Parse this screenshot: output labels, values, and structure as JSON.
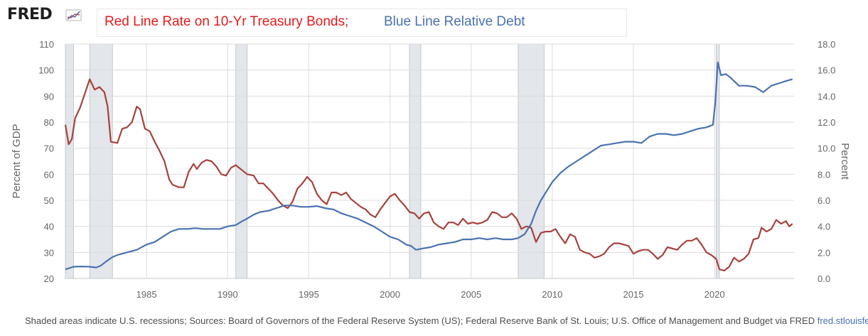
{
  "header": {
    "logo": "FRED",
    "caption_red": "Red Line Rate on 10-Yr Treasury Bonds;",
    "caption_blue": "Blue Line Relative Debt"
  },
  "footer": {
    "prefix": "Shaded areas indicate U.S. recessions",
    "sources": "Sources: Board of Governors of the Federal Reserve System (US); Federal Reserve Bank of St. Louis; U.S. Office of Management and Budget via FRED",
    "url": "fred.stlouisfed.org"
  },
  "colors": {
    "red": "#a7423d",
    "blue": "#4a72b0",
    "recession": "#e3e6ea",
    "grid": "#dcdcdc",
    "axis_text": "#666666"
  },
  "chart_data": {
    "type": "line",
    "xlabel": "",
    "ylabel_left": "Percent of GDP",
    "ylabel_right": "Percent",
    "xlim": [
      1980.0,
      2024.9
    ],
    "ylim_left": [
      20,
      110
    ],
    "ylim_right": [
      0,
      18
    ],
    "x_ticks": [
      1985,
      1990,
      1995,
      2000,
      2005,
      2010,
      2015,
      2020
    ],
    "y_ticks_left": [
      "20",
      "30",
      "40",
      "50",
      "60",
      "70",
      "80",
      "90",
      "100",
      "110"
    ],
    "y_ticks_right": [
      "0.0",
      "2.0",
      "4.0",
      "6.0",
      "8.0",
      "10.0",
      "12.0",
      "14.0",
      "16.0",
      "18.0"
    ],
    "grid": true,
    "recessions": [
      [
        1980.0,
        1980.5
      ],
      [
        1981.5,
        1982.9
      ],
      [
        1990.5,
        1991.2
      ],
      [
        2001.2,
        2001.9
      ],
      [
        2007.9,
        2009.5
      ],
      [
        2020.1,
        2020.3
      ]
    ],
    "series": [
      {
        "axis": "right",
        "color": "#a7423d",
        "points": [
          [
            1980.0,
            11.8
          ],
          [
            1980.2,
            10.3
          ],
          [
            1980.4,
            10.7
          ],
          [
            1980.6,
            12.3
          ],
          [
            1980.9,
            13.1
          ],
          [
            1981.2,
            14.2
          ],
          [
            1981.5,
            15.3
          ],
          [
            1981.8,
            14.5
          ],
          [
            1982.1,
            14.7
          ],
          [
            1982.4,
            14.3
          ],
          [
            1982.6,
            13.2
          ],
          [
            1982.8,
            10.5
          ],
          [
            1983.2,
            10.4
          ],
          [
            1983.5,
            11.5
          ],
          [
            1983.8,
            11.6
          ],
          [
            1984.1,
            12.0
          ],
          [
            1984.4,
            13.2
          ],
          [
            1984.6,
            13.0
          ],
          [
            1984.9,
            11.5
          ],
          [
            1985.2,
            11.3
          ],
          [
            1985.5,
            10.5
          ],
          [
            1985.8,
            9.8
          ],
          [
            1986.1,
            9.0
          ],
          [
            1986.4,
            7.6
          ],
          [
            1986.6,
            7.2
          ],
          [
            1987.0,
            7.0
          ],
          [
            1987.3,
            7.0
          ],
          [
            1987.6,
            8.2
          ],
          [
            1987.9,
            8.8
          ],
          [
            1988.1,
            8.4
          ],
          [
            1988.4,
            8.9
          ],
          [
            1988.7,
            9.1
          ],
          [
            1989.0,
            9.0
          ],
          [
            1989.3,
            8.6
          ],
          [
            1989.6,
            8.0
          ],
          [
            1989.9,
            7.9
          ],
          [
            1990.2,
            8.5
          ],
          [
            1990.5,
            8.7
          ],
          [
            1990.9,
            8.3
          ],
          [
            1991.2,
            8.0
          ],
          [
            1991.6,
            7.9
          ],
          [
            1991.9,
            7.3
          ],
          [
            1992.2,
            7.3
          ],
          [
            1992.5,
            6.9
          ],
          [
            1992.8,
            6.5
          ],
          [
            1993.1,
            6.0
          ],
          [
            1993.4,
            5.6
          ],
          [
            1993.7,
            5.4
          ],
          [
            1994.0,
            5.9
          ],
          [
            1994.3,
            6.9
          ],
          [
            1994.6,
            7.3
          ],
          [
            1994.9,
            7.8
          ],
          [
            1995.2,
            7.4
          ],
          [
            1995.5,
            6.5
          ],
          [
            1995.8,
            6.0
          ],
          [
            1996.1,
            5.7
          ],
          [
            1996.4,
            6.6
          ],
          [
            1996.7,
            6.6
          ],
          [
            1997.0,
            6.4
          ],
          [
            1997.3,
            6.6
          ],
          [
            1997.6,
            6.1
          ],
          [
            1997.9,
            5.8
          ],
          [
            1998.2,
            5.5
          ],
          [
            1998.5,
            5.3
          ],
          [
            1998.8,
            4.9
          ],
          [
            1999.1,
            4.7
          ],
          [
            1999.4,
            5.3
          ],
          [
            1999.7,
            5.8
          ],
          [
            2000.0,
            6.3
          ],
          [
            2000.3,
            6.5
          ],
          [
            2000.6,
            6.0
          ],
          [
            2000.9,
            5.6
          ],
          [
            2001.2,
            5.1
          ],
          [
            2001.5,
            5.0
          ],
          [
            2001.8,
            4.6
          ],
          [
            2002.1,
            5.0
          ],
          [
            2002.4,
            5.1
          ],
          [
            2002.7,
            4.3
          ],
          [
            2003.0,
            4.0
          ],
          [
            2003.3,
            3.8
          ],
          [
            2003.6,
            4.3
          ],
          [
            2003.9,
            4.3
          ],
          [
            2004.2,
            4.1
          ],
          [
            2004.5,
            4.6
          ],
          [
            2004.8,
            4.2
          ],
          [
            2005.1,
            4.3
          ],
          [
            2005.4,
            4.2
          ],
          [
            2005.7,
            4.3
          ],
          [
            2006.0,
            4.5
          ],
          [
            2006.3,
            5.1
          ],
          [
            2006.6,
            5.0
          ],
          [
            2006.9,
            4.7
          ],
          [
            2007.2,
            4.7
          ],
          [
            2007.5,
            5.0
          ],
          [
            2007.8,
            4.6
          ],
          [
            2008.1,
            3.8
          ],
          [
            2008.4,
            4.0
          ],
          [
            2008.7,
            3.9
          ],
          [
            2009.0,
            2.8
          ],
          [
            2009.3,
            3.5
          ],
          [
            2009.6,
            3.6
          ],
          [
            2009.9,
            3.6
          ],
          [
            2010.2,
            3.8
          ],
          [
            2010.5,
            3.2
          ],
          [
            2010.8,
            2.7
          ],
          [
            2011.1,
            3.4
          ],
          [
            2011.4,
            3.2
          ],
          [
            2011.7,
            2.2
          ],
          [
            2012.0,
            2.0
          ],
          [
            2012.3,
            1.9
          ],
          [
            2012.6,
            1.6
          ],
          [
            2012.9,
            1.7
          ],
          [
            2013.2,
            1.9
          ],
          [
            2013.5,
            2.4
          ],
          [
            2013.8,
            2.7
          ],
          [
            2014.1,
            2.7
          ],
          [
            2014.4,
            2.6
          ],
          [
            2014.7,
            2.5
          ],
          [
            2015.0,
            1.9
          ],
          [
            2015.3,
            2.1
          ],
          [
            2015.6,
            2.2
          ],
          [
            2015.9,
            2.2
          ],
          [
            2016.2,
            1.9
          ],
          [
            2016.5,
            1.5
          ],
          [
            2016.8,
            1.8
          ],
          [
            2017.1,
            2.4
          ],
          [
            2017.4,
            2.3
          ],
          [
            2017.7,
            2.2
          ],
          [
            2018.0,
            2.6
          ],
          [
            2018.3,
            2.9
          ],
          [
            2018.6,
            2.9
          ],
          [
            2018.9,
            3.1
          ],
          [
            2019.2,
            2.6
          ],
          [
            2019.5,
            2.0
          ],
          [
            2019.8,
            1.8
          ],
          [
            2020.1,
            1.5
          ],
          [
            2020.3,
            0.7
          ],
          [
            2020.6,
            0.6
          ],
          [
            2020.9,
            0.9
          ],
          [
            2021.2,
            1.6
          ],
          [
            2021.5,
            1.3
          ],
          [
            2021.8,
            1.5
          ],
          [
            2022.1,
            1.9
          ],
          [
            2022.4,
            3.0
          ],
          [
            2022.7,
            3.1
          ],
          [
            2022.9,
            3.9
          ],
          [
            2023.2,
            3.6
          ],
          [
            2023.5,
            3.8
          ],
          [
            2023.8,
            4.5
          ],
          [
            2024.1,
            4.2
          ],
          [
            2024.4,
            4.4
          ],
          [
            2024.6,
            4.0
          ],
          [
            2024.8,
            4.2
          ]
        ]
      },
      {
        "axis": "left",
        "color": "#4a72b0",
        "points": [
          [
            1980.0,
            23.5
          ],
          [
            1980.5,
            24.5
          ],
          [
            1981.0,
            24.6
          ],
          [
            1981.5,
            24.5
          ],
          [
            1981.9,
            24.2
          ],
          [
            1982.2,
            25.0
          ],
          [
            1982.5,
            26.5
          ],
          [
            1982.9,
            28.2
          ],
          [
            1983.2,
            29.0
          ],
          [
            1983.8,
            30.0
          ],
          [
            1984.4,
            31.0
          ],
          [
            1985.0,
            33.0
          ],
          [
            1985.5,
            34.0
          ],
          [
            1986.0,
            36.0
          ],
          [
            1986.5,
            38.0
          ],
          [
            1987.0,
            39.0
          ],
          [
            1987.5,
            39.0
          ],
          [
            1988.0,
            39.3
          ],
          [
            1988.5,
            39.0
          ],
          [
            1989.0,
            39.0
          ],
          [
            1989.5,
            39.0
          ],
          [
            1990.0,
            40.0
          ],
          [
            1990.5,
            40.5
          ],
          [
            1990.9,
            42.0
          ],
          [
            1991.2,
            43.0
          ],
          [
            1991.6,
            44.5
          ],
          [
            1992.0,
            45.5
          ],
          [
            1992.5,
            46.0
          ],
          [
            1993.0,
            47.0
          ],
          [
            1993.5,
            48.0
          ],
          [
            1994.0,
            48.0
          ],
          [
            1994.5,
            47.5
          ],
          [
            1995.0,
            47.5
          ],
          [
            1995.5,
            47.8
          ],
          [
            1996.0,
            47.0
          ],
          [
            1996.5,
            46.5
          ],
          [
            1997.0,
            45.0
          ],
          [
            1997.5,
            44.0
          ],
          [
            1998.0,
            43.0
          ],
          [
            1998.5,
            41.5
          ],
          [
            1999.0,
            40.0
          ],
          [
            1999.5,
            38.0
          ],
          [
            2000.0,
            36.0
          ],
          [
            2000.5,
            35.0
          ],
          [
            2001.0,
            33.0
          ],
          [
            2001.3,
            32.5
          ],
          [
            2001.6,
            31.0
          ],
          [
            2002.0,
            31.5
          ],
          [
            2002.5,
            32.0
          ],
          [
            2003.0,
            33.0
          ],
          [
            2003.5,
            33.5
          ],
          [
            2004.0,
            34.0
          ],
          [
            2004.5,
            35.0
          ],
          [
            2005.0,
            35.0
          ],
          [
            2005.5,
            35.5
          ],
          [
            2006.0,
            35.0
          ],
          [
            2006.5,
            35.5
          ],
          [
            2007.0,
            35.0
          ],
          [
            2007.5,
            35.0
          ],
          [
            2007.9,
            35.5
          ],
          [
            2008.3,
            37.0
          ],
          [
            2008.7,
            41.0
          ],
          [
            2009.0,
            46.0
          ],
          [
            2009.3,
            50.0
          ],
          [
            2009.7,
            54.0
          ],
          [
            2010.0,
            57.0
          ],
          [
            2010.5,
            60.5
          ],
          [
            2011.0,
            63.0
          ],
          [
            2011.5,
            65.0
          ],
          [
            2012.0,
            67.0
          ],
          [
            2012.5,
            69.0
          ],
          [
            2013.0,
            71.0
          ],
          [
            2013.5,
            71.5
          ],
          [
            2014.0,
            72.0
          ],
          [
            2014.5,
            72.5
          ],
          [
            2015.0,
            72.5
          ],
          [
            2015.5,
            72.0
          ],
          [
            2016.0,
            74.5
          ],
          [
            2016.5,
            75.5
          ],
          [
            2017.0,
            75.5
          ],
          [
            2017.5,
            75.0
          ],
          [
            2018.0,
            75.5
          ],
          [
            2018.5,
            76.5
          ],
          [
            2019.0,
            77.5
          ],
          [
            2019.5,
            78.0
          ],
          [
            2019.9,
            79.0
          ],
          [
            2020.05,
            88.0
          ],
          [
            2020.2,
            103.0
          ],
          [
            2020.4,
            98.0
          ],
          [
            2020.7,
            98.5
          ],
          [
            2021.0,
            97.0
          ],
          [
            2021.5,
            94.0
          ],
          [
            2022.0,
            94.0
          ],
          [
            2022.5,
            93.5
          ],
          [
            2023.0,
            91.5
          ],
          [
            2023.5,
            94.0
          ],
          [
            2024.0,
            95.0
          ],
          [
            2024.5,
            96.0
          ],
          [
            2024.8,
            96.5
          ]
        ]
      }
    ]
  }
}
